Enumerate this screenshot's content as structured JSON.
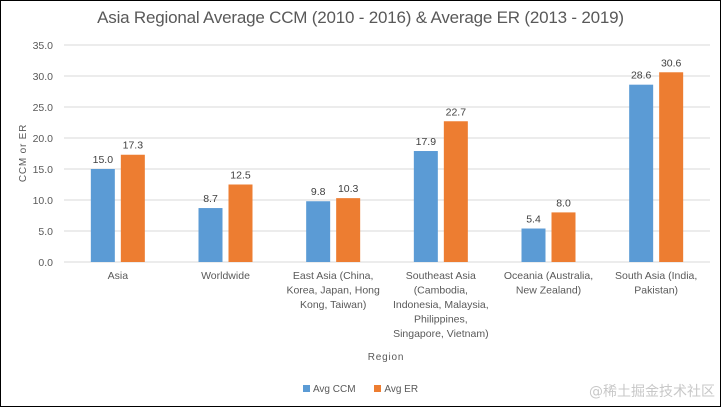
{
  "chart_data": {
    "type": "bar",
    "title": "Asia Regional Average CCM (2010 - 2016) & Average ER (2013 - 2019)",
    "xlabel": "Region",
    "ylabel": "CCM or ER",
    "ylim": [
      0,
      35
    ],
    "yticks": [
      "0.0",
      "5.0",
      "10.0",
      "15.0",
      "20.0",
      "25.0",
      "30.0",
      "35.0"
    ],
    "ytick_values": [
      0,
      5,
      10,
      15,
      20,
      25,
      30,
      35
    ],
    "grid": true,
    "legend_position": "bottom",
    "categories": [
      [
        "Asia"
      ],
      [
        "Worldwide"
      ],
      [
        "East Asia (China,",
        "Korea, Japan, Hong",
        "Kong, Taiwan)"
      ],
      [
        "Southeast Asia",
        "(Cambodia,",
        "Indonesia, Malaysia,",
        "Philippines,",
        "Singapore, Vietnam)"
      ],
      [
        "Oceania (Australia,",
        "New Zealand)"
      ],
      [
        "South Asia (India,",
        "Pakistan)"
      ]
    ],
    "series": [
      {
        "name": "Avg CCM",
        "color": "#5b9bd5",
        "values": [
          15.0,
          8.7,
          9.8,
          17.9,
          5.4,
          28.6
        ]
      },
      {
        "name": "Avg ER",
        "color": "#ed7d31",
        "values": [
          17.3,
          12.5,
          10.3,
          22.7,
          8.0,
          30.6
        ]
      }
    ]
  },
  "watermark": "@稀土掘金技术社区"
}
